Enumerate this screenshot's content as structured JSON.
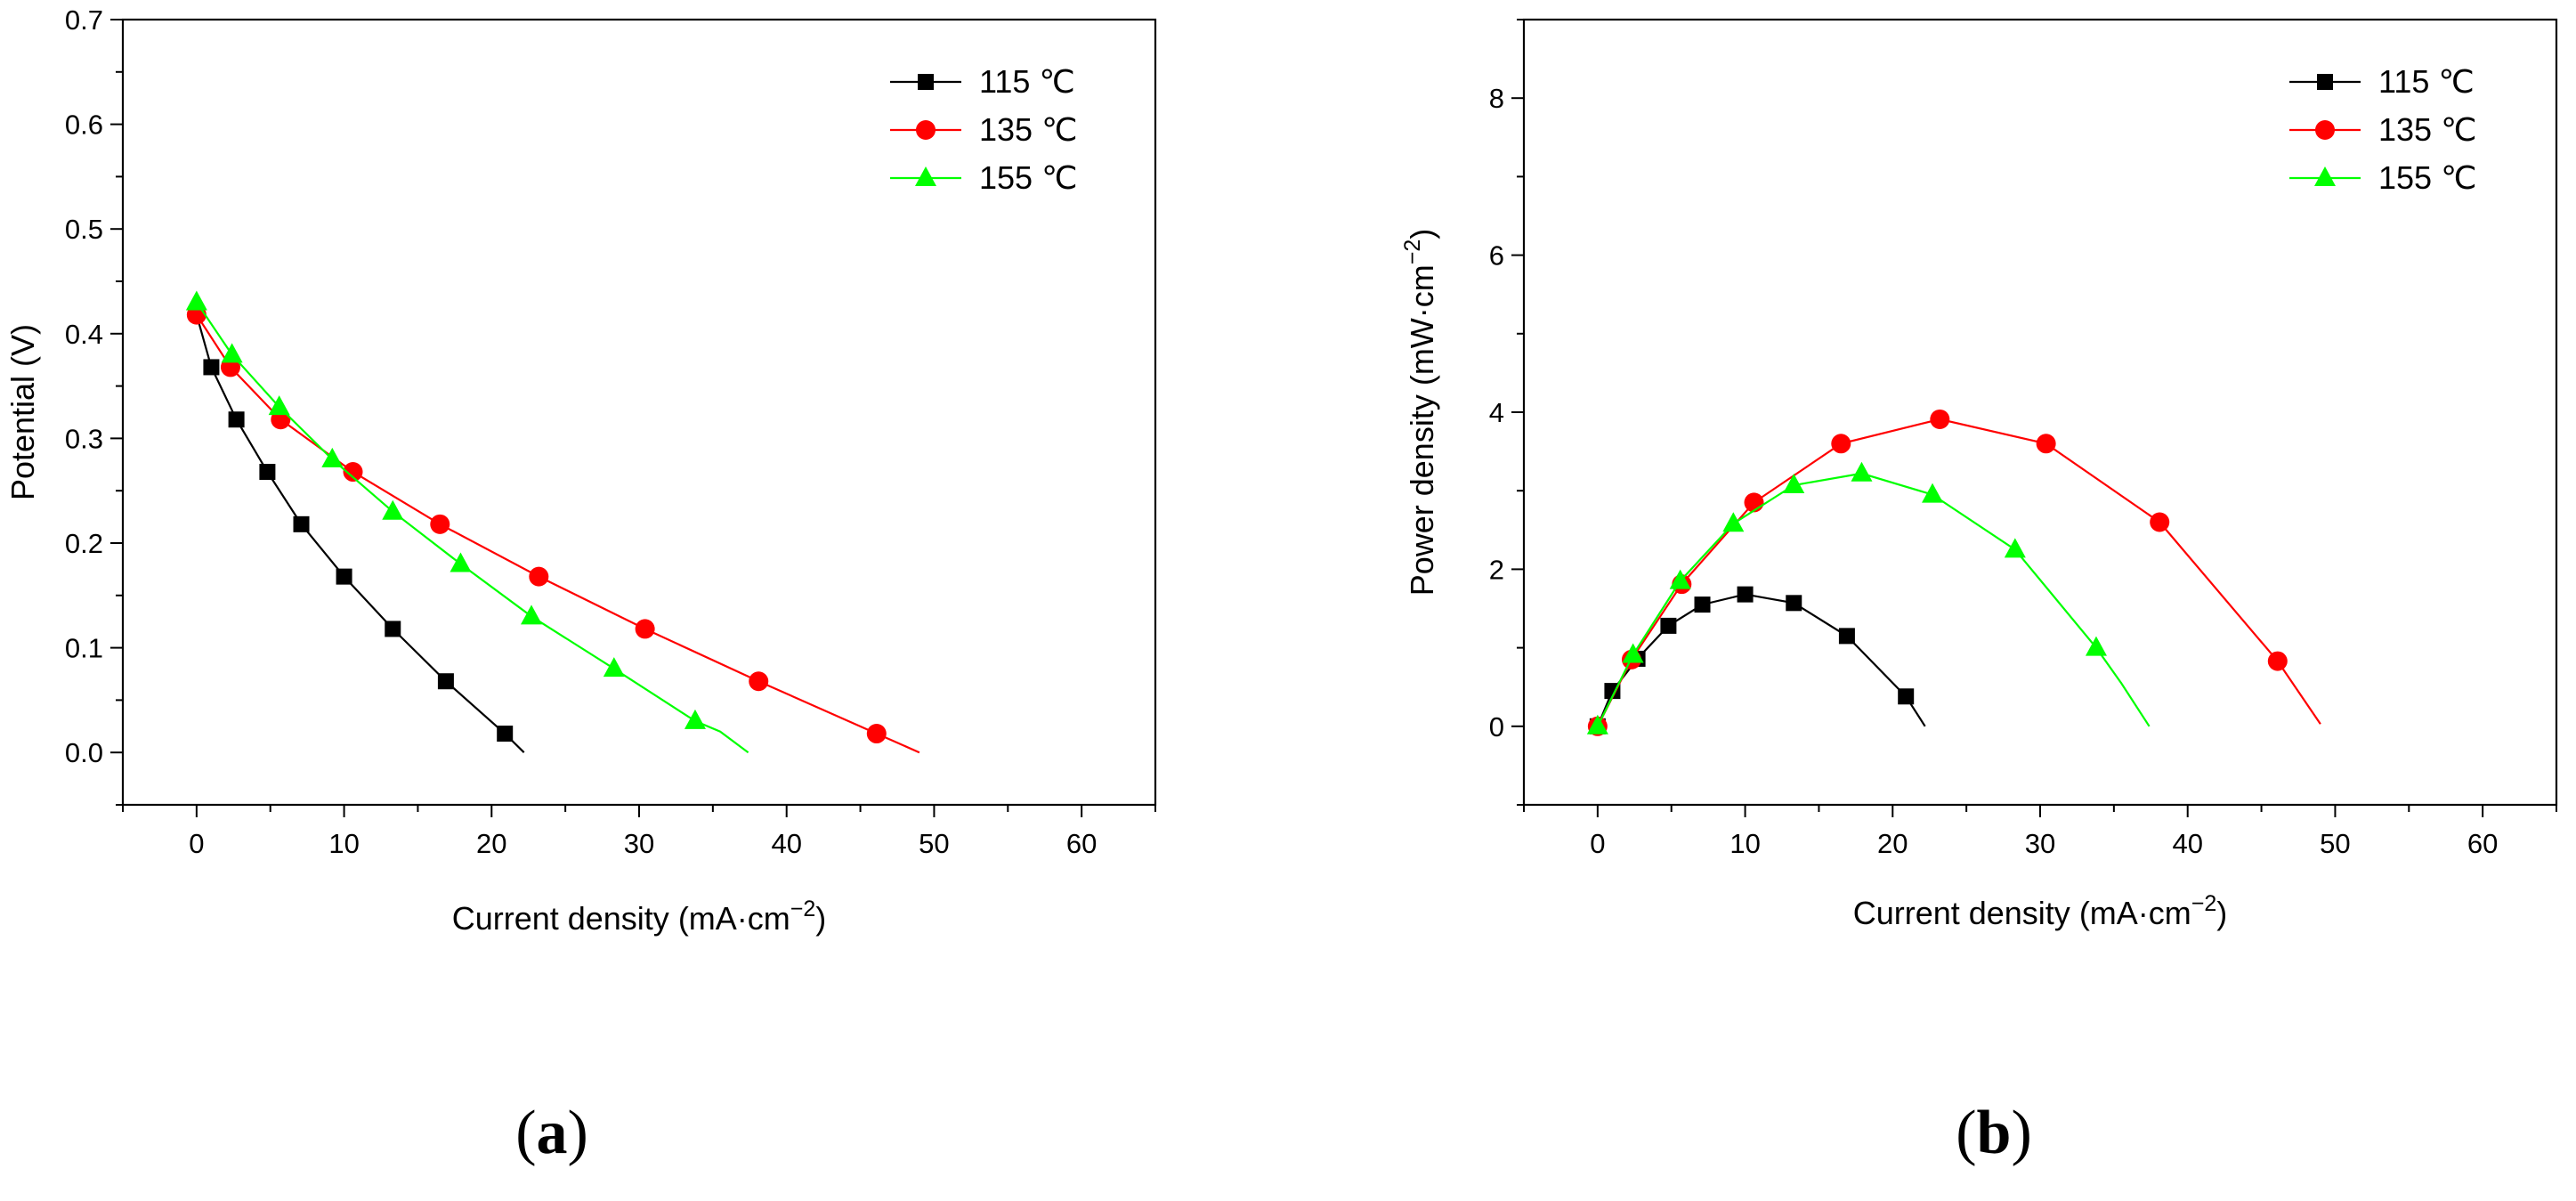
{
  "chart_data": [
    {
      "type": "scatter",
      "panel": "(a)",
      "panel_prefix": "(",
      "panel_letter": "a",
      "panel_suffix": ")",
      "title": "",
      "xlabel_main": "Current density (mA·cm",
      "xlabel_sup": "−2",
      "xlabel_end": ")",
      "ylabel_main": "Potential (V)",
      "ylabel_sup": "",
      "ylabel_end": "",
      "xlim": [
        -5,
        65
      ],
      "ylim": [
        -0.05,
        0.7
      ],
      "xticks": [
        0,
        10,
        20,
        30,
        40,
        50,
        60
      ],
      "yticks": [
        0.0,
        0.1,
        0.2,
        0.3,
        0.4,
        0.5,
        0.6,
        0.7
      ],
      "ytick_decimals": 1,
      "legend_position": "top-right",
      "series": [
        {
          "name": "115 ℃",
          "color": "#000000",
          "marker": "square",
          "x": [
            1.0,
            2.7,
            4.8,
            7.1,
            10.0,
            13.3,
            16.9,
            20.9
          ],
          "y": [
            0.368,
            0.318,
            0.268,
            0.218,
            0.168,
            0.118,
            0.068,
            0.018
          ],
          "line_x": [
            0.0,
            1.0,
            2.7,
            4.8,
            7.1,
            10.0,
            13.3,
            16.9,
            20.9,
            22.2
          ],
          "line_y": [
            0.418,
            0.368,
            0.318,
            0.268,
            0.218,
            0.168,
            0.118,
            0.068,
            0.018,
            0.0
          ]
        },
        {
          "name": "135 ℃",
          "color": "#ff0000",
          "marker": "circle",
          "x": [
            0.0,
            2.3,
            5.7,
            10.6,
            16.5,
            23.2,
            30.4,
            38.1,
            46.1
          ],
          "y": [
            0.418,
            0.368,
            0.318,
            0.268,
            0.218,
            0.168,
            0.118,
            0.068,
            0.018
          ],
          "line_x": [
            0.0,
            2.3,
            5.7,
            10.6,
            16.5,
            23.2,
            30.4,
            38.1,
            46.1,
            49.0
          ],
          "line_y": [
            0.418,
            0.368,
            0.318,
            0.268,
            0.218,
            0.168,
            0.118,
            0.068,
            0.018,
            0.0
          ]
        },
        {
          "name": "155 ℃",
          "color": "#00ff00",
          "marker": "triangle",
          "x": [
            0.0,
            2.4,
            5.6,
            9.2,
            13.3,
            17.9,
            22.7,
            28.3,
            33.8
          ],
          "y": [
            0.43,
            0.38,
            0.33,
            0.28,
            0.23,
            0.18,
            0.13,
            0.08,
            0.03
          ],
          "line_x": [
            0.0,
            2.4,
            5.6,
            9.2,
            13.3,
            17.9,
            22.7,
            28.3,
            33.8,
            35.5,
            37.4
          ],
          "line_y": [
            0.43,
            0.38,
            0.33,
            0.28,
            0.23,
            0.18,
            0.13,
            0.08,
            0.03,
            0.02,
            0.0
          ]
        }
      ]
    },
    {
      "type": "scatter",
      "panel": "(b)",
      "panel_prefix": "(",
      "panel_letter": "b",
      "panel_suffix": ")",
      "title": "",
      "xlabel_main": "Current density (mA·cm",
      "xlabel_sup": "−2",
      "xlabel_end": ")",
      "ylabel_main": "Power density (mW·cm",
      "ylabel_sup": "−2",
      "ylabel_end": ")",
      "xlim": [
        -5,
        65
      ],
      "ylim": [
        -1,
        9
      ],
      "xticks": [
        0,
        10,
        20,
        30,
        40,
        50,
        60
      ],
      "yticks": [
        0,
        2,
        4,
        6,
        8
      ],
      "ytick_decimals": 0,
      "legend_position": "top-right",
      "series": [
        {
          "name": "115 ℃",
          "color": "#000000",
          "marker": "square",
          "x": [
            0.0,
            1.0,
            2.7,
            4.8,
            7.1,
            10.0,
            13.3,
            16.9,
            20.9
          ],
          "y": [
            0.0,
            0.45,
            0.86,
            1.28,
            1.55,
            1.68,
            1.57,
            1.15,
            0.38
          ],
          "line_x": [
            0.0,
            1.0,
            2.7,
            4.8,
            7.1,
            10.0,
            13.3,
            16.9,
            20.9,
            22.2
          ],
          "line_y": [
            0.0,
            0.45,
            0.86,
            1.28,
            1.55,
            1.68,
            1.57,
            1.15,
            0.38,
            0.0
          ]
        },
        {
          "name": "135 ℃",
          "color": "#ff0000",
          "marker": "circle",
          "x": [
            0.0,
            2.3,
            5.7,
            10.6,
            16.5,
            23.2,
            30.4,
            38.1,
            46.1
          ],
          "y": [
            0.0,
            0.85,
            1.81,
            2.85,
            3.6,
            3.91,
            3.6,
            2.6,
            0.83
          ],
          "line_x": [
            0.0,
            2.3,
            5.7,
            10.6,
            16.5,
            23.2,
            30.4,
            38.1,
            46.1,
            49.0
          ],
          "line_y": [
            0.0,
            0.85,
            1.81,
            2.85,
            3.6,
            3.91,
            3.6,
            2.6,
            0.83,
            0.03
          ]
        },
        {
          "name": "155 ℃",
          "color": "#00ff00",
          "marker": "triangle",
          "x": [
            0.0,
            2.4,
            5.6,
            9.2,
            13.3,
            17.9,
            22.7,
            28.3,
            33.8
          ],
          "y": [
            0.0,
            0.91,
            1.85,
            2.58,
            3.07,
            3.22,
            2.95,
            2.25,
            1.0
          ],
          "line_x": [
            0.0,
            2.4,
            5.6,
            9.2,
            13.3,
            17.9,
            22.7,
            28.3,
            33.8,
            35.5,
            37.4
          ],
          "line_y": [
            0.0,
            0.91,
            1.85,
            2.58,
            3.07,
            3.22,
            2.95,
            2.25,
            1.0,
            0.55,
            0.0
          ]
        }
      ]
    }
  ]
}
